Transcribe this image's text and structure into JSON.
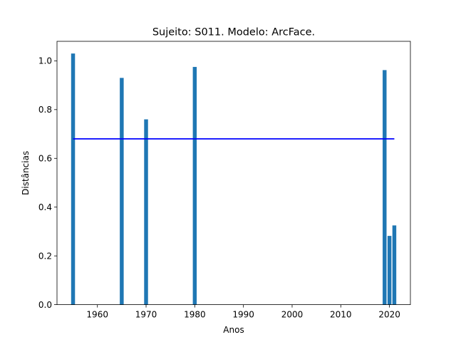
{
  "chart_data": {
    "type": "bar",
    "title": "Sujeito: S011. Modelo: ArcFace.",
    "xlabel": "Anos",
    "ylabel": "Distâncias",
    "x": [
      1955,
      1965,
      1970,
      1980,
      2019,
      2020,
      2021
    ],
    "values": [
      1.03,
      0.93,
      0.76,
      0.975,
      0.962,
      0.282,
      0.325
    ],
    "xlim": [
      1951.7,
      2024.3
    ],
    "ylim": [
      0.0,
      1.08
    ],
    "xticks": [
      "1960",
      "1970",
      "1980",
      "1990",
      "2000",
      "2010",
      "2020"
    ],
    "yticks": [
      "0.0",
      "0.2",
      "0.4",
      "0.6",
      "0.8",
      "1.0"
    ],
    "bar_color": "#1f77b4",
    "threshold_line": {
      "y": 0.68,
      "x_start": 1955,
      "x_end": 2021,
      "color": "#0000ff"
    },
    "grid": false,
    "legend": "none"
  }
}
